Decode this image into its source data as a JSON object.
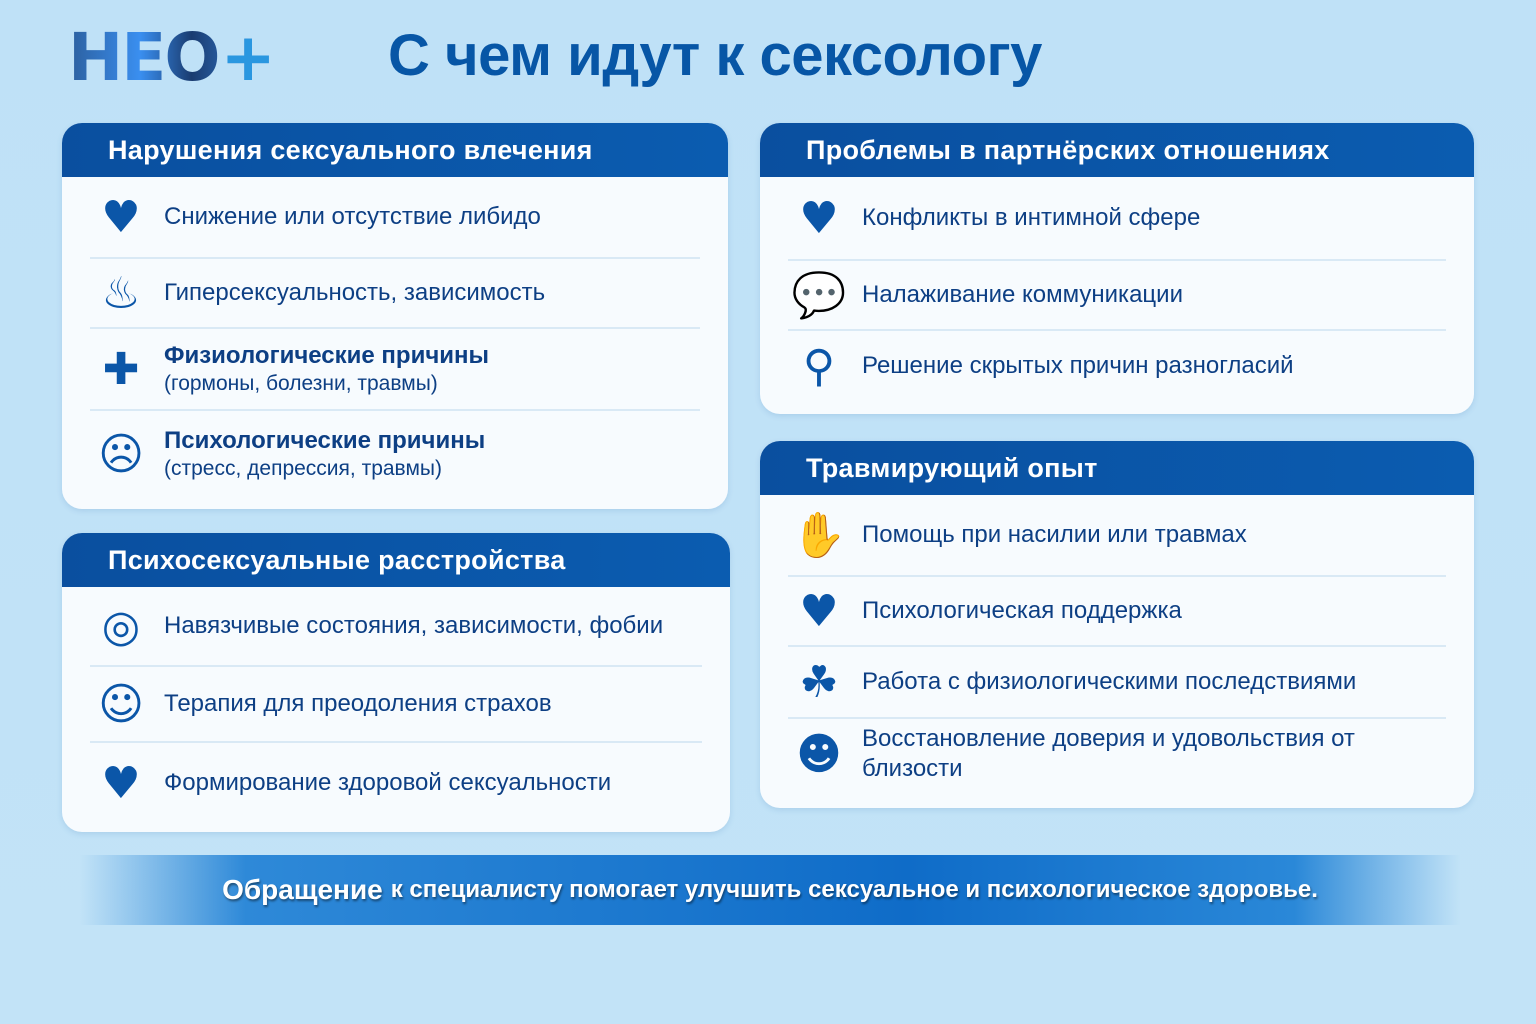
{
  "logo": {
    "text": "НЕО",
    "plus": "+"
  },
  "title": "С чем идут к сексологу",
  "colors": {
    "header": "#0a56a8",
    "text": "#0d3f84",
    "background": "#bfe1f7"
  },
  "sections": [
    {
      "title": "Нарушения сексуального влечения",
      "items": [
        {
          "icon": "broken-heart-icon",
          "glyph": "♥",
          "text": "Снижение или отсутствие либидо"
        },
        {
          "icon": "flame-icon",
          "glyph": "♨",
          "text": "Гиперсексуальность, зависимость"
        },
        {
          "icon": "medical-cross-icon",
          "glyph": "✚",
          "text": "Физиологические причины",
          "sub": "(гормоны, болезни, травмы)"
        },
        {
          "icon": "sad-face-icon",
          "glyph": "☹",
          "text": "Психологические причины",
          "sub": "(стресс, депрессия, травмы)"
        }
      ]
    },
    {
      "title": "Психосексуальные расстройства",
      "items": [
        {
          "icon": "spiral-head-icon",
          "glyph": "◎",
          "text": "Навязчивые состояния, зависимости, фобии"
        },
        {
          "icon": "therapist-icon",
          "glyph": "☺",
          "text": "Терапия для преодоления страхов"
        },
        {
          "icon": "heart-icon",
          "glyph": "♥",
          "text": "Формирование здоровой сексуальности"
        }
      ]
    },
    {
      "title": "Проблемы в партнёрских отношениях",
      "items": [
        {
          "icon": "broken-heart-icon",
          "glyph": "♥",
          "text": "Конфликты в интимной сфере"
        },
        {
          "icon": "speech-bubbles-icon",
          "glyph": "💬",
          "text": "Налаживание коммуникации"
        },
        {
          "icon": "magnifier-head-icon",
          "glyph": "⚲",
          "text": "Решение скрытых причин разногласий"
        }
      ]
    },
    {
      "title": "Травмирующий опыт",
      "items": [
        {
          "icon": "hand-icon",
          "glyph": "✋",
          "text": "Помощь при насилии или травмах"
        },
        {
          "icon": "heart-icon",
          "glyph": "♥",
          "text": "Психологическая поддержка"
        },
        {
          "icon": "brain-tree-icon",
          "glyph": "☘",
          "text": "Работа с физиологическими последствиями"
        },
        {
          "icon": "embrace-icon",
          "glyph": "☻",
          "text": "Восстановление доверия и удовольствия от близости"
        }
      ]
    }
  ],
  "banner": {
    "lead": "Обращение",
    "text": "к специалисту помогает улучшить сексуальное и психологическое здоровье."
  }
}
